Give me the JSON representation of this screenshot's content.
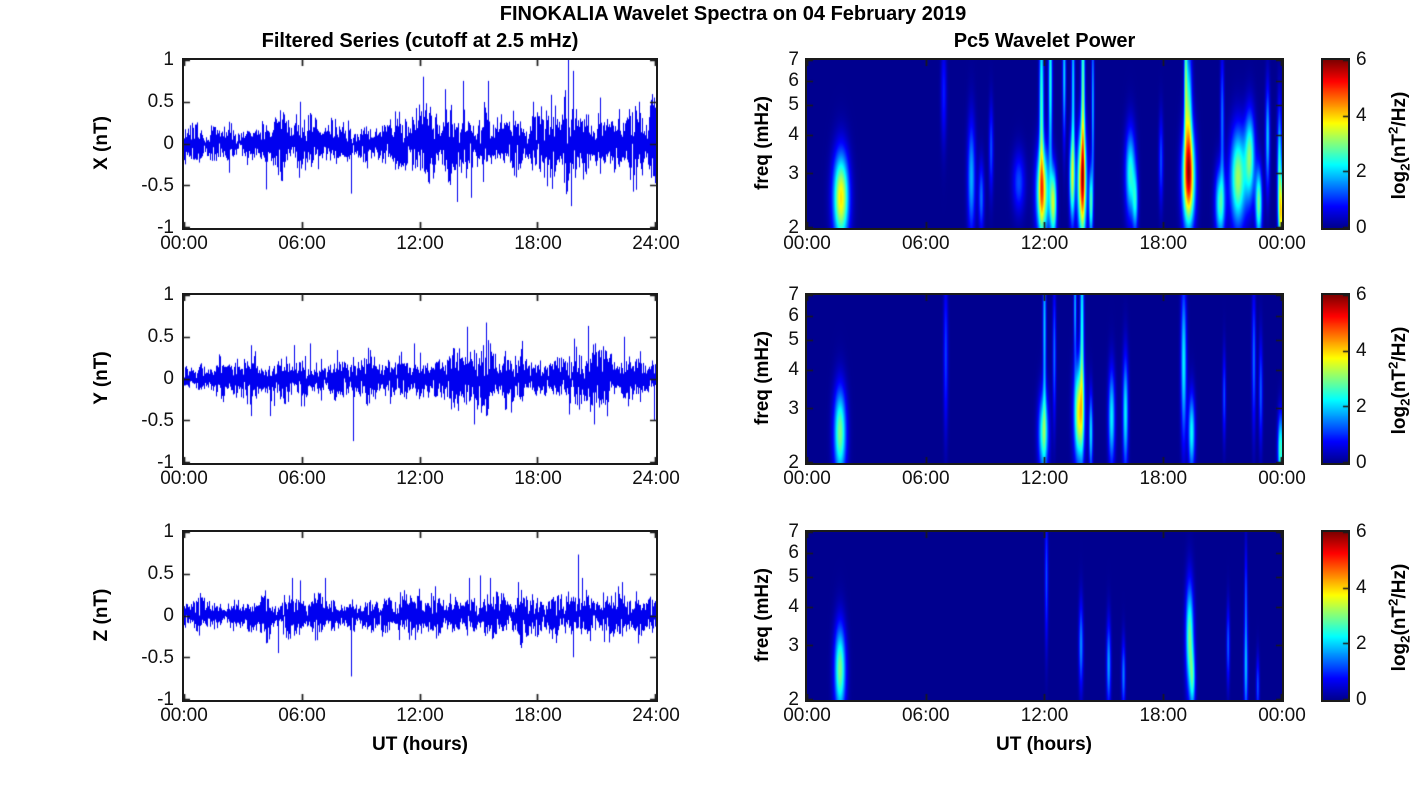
{
  "figure": {
    "title": "FINOKALIA Wavelet Spectra on 04 February 2019"
  },
  "left_column": {
    "title": "Filtered Series (cutoff at 2.5 mHz)",
    "xlabel": "UT (hours)",
    "xticks": [
      "00:00",
      "06:00",
      "12:00",
      "18:00",
      "24:00"
    ],
    "yticks": [
      "1",
      "0.5",
      "0",
      "-0.5",
      "-1"
    ]
  },
  "right_column": {
    "title": "Pc5 Wavelet Power",
    "xlabel": "UT (hours)",
    "xticks": [
      "00:00",
      "06:00",
      "12:00",
      "18:00",
      "00:00"
    ],
    "yticks": [
      "7",
      "6",
      "5",
      "4",
      "3",
      "2"
    ],
    "ylabel": "freq (mHz)",
    "colorbar": {
      "ticks": [
        "6",
        "4",
        "2",
        "0"
      ],
      "label": {
        "pre": "log",
        "sub": "2",
        "mid": "(nT",
        "sup": "2",
        "post": "/Hz)"
      }
    }
  },
  "chart_data": [
    {
      "type": "line",
      "name": "X filtered series",
      "ylabel": "X (nT)",
      "xlabel": "UT (hours)",
      "xlim_hours": [
        0,
        24
      ],
      "ylim_nT": [
        -1,
        1
      ],
      "xticks": [
        "00:00",
        "06:00",
        "12:00",
        "18:00",
        "24:00"
      ],
      "yticks": [
        1,
        0.5,
        0,
        -0.5,
        -1
      ],
      "line_color": "#0000f0",
      "hourly_envelope_nT": [
        0.12,
        0.12,
        0.14,
        0.13,
        0.15,
        0.17,
        0.16,
        0.15,
        0.15,
        0.14,
        0.13,
        0.16,
        0.22,
        0.22,
        0.25,
        0.22,
        0.18,
        0.16,
        0.18,
        0.28,
        0.3,
        0.2,
        0.2,
        0.2,
        0.28
      ],
      "spikes_nT": [
        [
          2.3,
          -0.35
        ],
        [
          4.2,
          -0.55
        ],
        [
          5.0,
          -0.45
        ],
        [
          5.9,
          0.5
        ],
        [
          8.5,
          -0.6
        ],
        [
          12.2,
          0.8
        ],
        [
          13.3,
          0.65
        ],
        [
          13.9,
          -0.7
        ],
        [
          14.2,
          0.75
        ],
        [
          14.6,
          -0.65
        ],
        [
          15.5,
          0.75
        ],
        [
          17.8,
          0.5
        ],
        [
          19.55,
          1.0
        ],
        [
          19.7,
          -0.75
        ],
        [
          19.8,
          0.87
        ],
        [
          21.2,
          0.55
        ],
        [
          23.2,
          0.5
        ],
        [
          23.95,
          0.55
        ]
      ]
    },
    {
      "type": "line",
      "name": "Y filtered series",
      "ylabel": "Y (nT)",
      "xlabel": "UT (hours)",
      "xlim_hours": [
        0,
        24
      ],
      "ylim_nT": [
        -1,
        1
      ],
      "xticks": [
        "00:00",
        "06:00",
        "12:00",
        "18:00",
        "24:00"
      ],
      "yticks": [
        1,
        0.5,
        0,
        -0.5,
        -1
      ],
      "line_color": "#0000f0",
      "hourly_envelope_nT": [
        0.1,
        0.1,
        0.12,
        0.13,
        0.12,
        0.15,
        0.17,
        0.14,
        0.13,
        0.13,
        0.12,
        0.13,
        0.16,
        0.17,
        0.2,
        0.2,
        0.18,
        0.16,
        0.15,
        0.15,
        0.2,
        0.21,
        0.16,
        0.15,
        0.15
      ],
      "spikes_nT": [
        [
          3.4,
          -0.45
        ],
        [
          4.4,
          -0.45
        ],
        [
          5.6,
          0.4
        ],
        [
          6.4,
          0.42
        ],
        [
          8.6,
          -0.75
        ],
        [
          11.7,
          0.42
        ],
        [
          14.4,
          0.62
        ],
        [
          14.8,
          -0.55
        ],
        [
          15.4,
          0.67
        ],
        [
          17.2,
          0.45
        ],
        [
          20.6,
          0.63
        ],
        [
          20.9,
          -0.55
        ],
        [
          22.4,
          0.5
        ],
        [
          23.95,
          -0.5
        ]
      ]
    },
    {
      "type": "line",
      "name": "Z filtered series",
      "ylabel": "Z (nT)",
      "xlabel": "UT (hours)",
      "xlim_hours": [
        0,
        24
      ],
      "ylim_nT": [
        -1,
        1
      ],
      "xticks": [
        "00:00",
        "06:00",
        "12:00",
        "18:00",
        "24:00"
      ],
      "yticks": [
        1,
        0.5,
        0,
        -0.5,
        -1
      ],
      "line_color": "#0000f0",
      "hourly_envelope_nT": [
        0.1,
        0.1,
        0.11,
        0.11,
        0.12,
        0.13,
        0.12,
        0.12,
        0.12,
        0.11,
        0.11,
        0.12,
        0.13,
        0.13,
        0.14,
        0.14,
        0.14,
        0.13,
        0.13,
        0.15,
        0.2,
        0.15,
        0.15,
        0.13,
        0.13
      ],
      "spikes_nT": [
        [
          4.8,
          -0.45
        ],
        [
          5.5,
          0.45
        ],
        [
          5.9,
          0.42
        ],
        [
          7.2,
          0.45
        ],
        [
          8.5,
          -0.73
        ],
        [
          12.8,
          0.35
        ],
        [
          14.5,
          0.45
        ],
        [
          15.1,
          0.48
        ],
        [
          15.6,
          0.45
        ],
        [
          17.0,
          0.4
        ],
        [
          19.8,
          -0.5
        ],
        [
          20.1,
          0.73
        ],
        [
          20.3,
          0.45
        ],
        [
          22.3,
          0.4
        ]
      ]
    },
    {
      "type": "heatmap",
      "name": "X wavelet power",
      "ylabel": "freq (mHz)",
      "xlim_hours": [
        0,
        24
      ],
      "ylim_mHz": [
        2,
        7
      ],
      "yscale": "log",
      "xticks": [
        "00:00",
        "06:00",
        "12:00",
        "18:00",
        "00:00"
      ],
      "yticks": [
        7,
        6,
        5,
        4,
        3,
        2
      ],
      "colormap": "jet",
      "colormap_stops": [
        "#00008F",
        "#0000FF",
        "#00FFFF",
        "#FFFF00",
        "#FF0000",
        "#800000"
      ],
      "colormap_positions": [
        0,
        0.125,
        0.375,
        0.625,
        0.875,
        1
      ],
      "clim_log2_power": [
        0,
        6
      ],
      "blobs_t_f_sigt_sigf_peak": [
        [
          1.7,
          2.5,
          0.28,
          0.1,
          3.9
        ],
        [
          6.9,
          5.5,
          0.1,
          0.12,
          0.9
        ],
        [
          8.3,
          2.9,
          0.14,
          0.13,
          1.8
        ],
        [
          8.8,
          2.5,
          0.1,
          0.08,
          1.4
        ],
        [
          9.3,
          3.6,
          0.08,
          0.1,
          1.2
        ],
        [
          10.7,
          2.8,
          0.22,
          0.07,
          1.2
        ],
        [
          11.9,
          2.6,
          0.22,
          0.1,
          4.0
        ],
        [
          11.85,
          5.0,
          0.08,
          0.22,
          2.6
        ],
        [
          12.3,
          6.0,
          0.07,
          0.2,
          2.4
        ],
        [
          12.45,
          2.4,
          0.12,
          0.08,
          3.3
        ],
        [
          13.0,
          6.3,
          0.06,
          0.15,
          2.0
        ],
        [
          13.4,
          2.9,
          0.1,
          0.1,
          3.0
        ],
        [
          13.45,
          5.8,
          0.06,
          0.2,
          2.0
        ],
        [
          13.9,
          2.8,
          0.16,
          0.12,
          4.6
        ],
        [
          13.95,
          5.5,
          0.07,
          0.25,
          2.8
        ],
        [
          14.35,
          2.4,
          0.07,
          0.08,
          2.6
        ],
        [
          14.45,
          5.0,
          0.05,
          0.2,
          1.8
        ],
        [
          16.35,
          3.0,
          0.18,
          0.1,
          2.5
        ],
        [
          16.6,
          2.4,
          0.1,
          0.07,
          1.8
        ],
        [
          17.9,
          3.3,
          0.08,
          0.1,
          1.2
        ],
        [
          19.3,
          2.9,
          0.22,
          0.11,
          5.0
        ],
        [
          19.3,
          4.8,
          0.12,
          0.15,
          2.4
        ],
        [
          19.15,
          6.2,
          0.06,
          0.15,
          2.2
        ],
        [
          20.9,
          2.4,
          0.18,
          0.08,
          2.6
        ],
        [
          21.0,
          4.5,
          0.07,
          0.15,
          1.4
        ],
        [
          21.8,
          2.9,
          0.28,
          0.11,
          3.2
        ],
        [
          22.4,
          3.4,
          0.18,
          0.1,
          2.8
        ],
        [
          22.85,
          2.4,
          0.12,
          0.08,
          2.9
        ],
        [
          23.3,
          3.9,
          0.08,
          0.12,
          1.9
        ],
        [
          23.9,
          3.1,
          0.08,
          0.14,
          2.4
        ],
        [
          24.0,
          2.2,
          0.1,
          0.08,
          3.3
        ]
      ]
    },
    {
      "type": "heatmap",
      "name": "Y wavelet power",
      "ylabel": "freq (mHz)",
      "xlim_hours": [
        0,
        24
      ],
      "ylim_mHz": [
        2,
        7
      ],
      "yscale": "log",
      "xticks": [
        "00:00",
        "06:00",
        "12:00",
        "18:00",
        "00:00"
      ],
      "yticks": [
        7,
        6,
        5,
        4,
        3,
        2
      ],
      "colormap": "jet",
      "colormap_stops": [
        "#00008F",
        "#0000FF",
        "#00FFFF",
        "#FFFF00",
        "#FF0000",
        "#800000"
      ],
      "colormap_positions": [
        0,
        0.125,
        0.375,
        0.625,
        0.875,
        1
      ],
      "clim_log2_power": [
        0,
        6
      ],
      "blobs_t_f_sigt_sigf_peak": [
        [
          1.65,
          2.5,
          0.22,
          0.1,
          3.0
        ],
        [
          7.0,
          4.5,
          0.08,
          0.18,
          1.1
        ],
        [
          11.95,
          2.5,
          0.18,
          0.09,
          2.7
        ],
        [
          12.0,
          5.5,
          0.06,
          0.22,
          1.9
        ],
        [
          12.5,
          4.5,
          0.06,
          0.15,
          1.4
        ],
        [
          13.75,
          2.9,
          0.18,
          0.11,
          3.8
        ],
        [
          13.9,
          5.5,
          0.07,
          0.25,
          2.3
        ],
        [
          13.55,
          6.5,
          0.05,
          0.12,
          1.8
        ],
        [
          14.35,
          2.5,
          0.07,
          0.09,
          2.1
        ],
        [
          15.4,
          2.8,
          0.12,
          0.11,
          2.2
        ],
        [
          16.1,
          2.9,
          0.1,
          0.13,
          2.2
        ],
        [
          19.05,
          4.2,
          0.1,
          0.18,
          2.2
        ],
        [
          19.45,
          2.5,
          0.12,
          0.09,
          2.3
        ],
        [
          21.1,
          3.3,
          0.06,
          0.1,
          1.2
        ],
        [
          22.6,
          4.3,
          0.07,
          0.16,
          1.4
        ],
        [
          22.95,
          3.4,
          0.07,
          0.12,
          1.3
        ],
        [
          23.95,
          2.2,
          0.1,
          0.08,
          2.7
        ]
      ]
    },
    {
      "type": "heatmap",
      "name": "Z wavelet power",
      "ylabel": "freq (mHz)",
      "xlim_hours": [
        0,
        24
      ],
      "ylim_mHz": [
        2,
        7
      ],
      "yscale": "log",
      "xticks": [
        "00:00",
        "06:00",
        "12:00",
        "18:00",
        "00:00"
      ],
      "yticks": [
        7,
        6,
        5,
        4,
        3,
        2
      ],
      "colormap": "jet",
      "colormap_stops": [
        "#00008F",
        "#0000FF",
        "#00FFFF",
        "#FFFF00",
        "#FF0000",
        "#800000"
      ],
      "colormap_positions": [
        0,
        0.125,
        0.375,
        0.625,
        0.875,
        1
      ],
      "clim_log2_power": [
        0,
        6
      ],
      "blobs_t_f_sigt_sigf_peak": [
        [
          1.65,
          2.5,
          0.2,
          0.1,
          3.0
        ],
        [
          12.1,
          5.0,
          0.06,
          0.16,
          1.2
        ],
        [
          13.85,
          3.0,
          0.08,
          0.1,
          1.6
        ],
        [
          15.25,
          2.6,
          0.08,
          0.1,
          1.7
        ],
        [
          16.0,
          2.4,
          0.07,
          0.08,
          1.5
        ],
        [
          19.35,
          3.2,
          0.14,
          0.12,
          2.9
        ],
        [
          19.5,
          2.3,
          0.1,
          0.07,
          1.9
        ],
        [
          21.3,
          3.0,
          0.06,
          0.09,
          1.3
        ],
        [
          22.2,
          2.5,
          0.07,
          0.12,
          1.8
        ],
        [
          22.2,
          4.5,
          0.05,
          0.12,
          1.0
        ],
        [
          22.8,
          2.2,
          0.06,
          0.07,
          1.2
        ]
      ]
    }
  ]
}
